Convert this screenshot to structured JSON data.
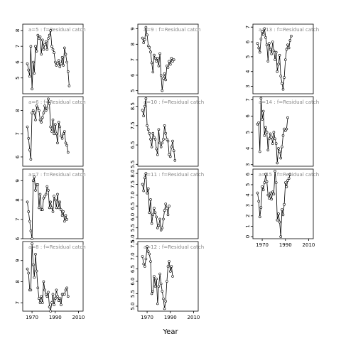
{
  "chart_data": {
    "type": "line",
    "xlabel": "Year",
    "grid": false,
    "panels": [
      {
        "label": "a=5 : f=Residual catch",
        "col": 0,
        "row": 0,
        "ylim": [
          4.0,
          8.4
        ],
        "yticks": [
          5,
          6,
          7,
          8
        ],
        "xticks": [],
        "x": [
          1966,
          1967,
          1968,
          1969,
          1970,
          1971,
          1972,
          1973,
          1974,
          1975,
          1976,
          1977,
          1978,
          1979,
          1980,
          1981,
          1982,
          1983,
          1984,
          1985,
          1986,
          1987,
          1988,
          1989,
          1990,
          1991,
          1992,
          1993,
          1994,
          1995,
          1996,
          1997,
          1998,
          1999,
          2000,
          2001,
          2002,
          2003,
          2004,
          2005,
          2006,
          2007,
          2008,
          2009,
          2010
        ],
        "y": [
          5.9,
          5.5,
          5.1,
          7.0,
          4.3,
          6.0,
          5.3,
          7.0,
          6.7,
          7.7,
          7.5,
          7.6,
          6.5,
          7.4,
          6.8,
          7.1,
          7.3,
          6.8,
          7.5,
          7.7,
          8.0,
          7.0,
          6.8,
          6.6,
          6.0,
          5.8,
          5.9,
          6.1,
          5.7,
          5.9,
          6.3,
          5.8,
          6.9,
          6.5,
          6.0,
          5.4,
          4.5,
          null,
          null,
          null,
          null,
          null,
          null,
          null,
          null
        ]
      },
      {
        "label": "a=6 : f=Residual catch",
        "col": 0,
        "row": 1,
        "ylim": [
          5.6,
          8.6
        ],
        "yticks": [
          6.0,
          7.0,
          8.0
        ],
        "xticks": [],
        "x": [
          1966,
          1967,
          1968,
          1969,
          1970,
          1971,
          1972,
          1973,
          1974,
          1975,
          1976,
          1977,
          1978,
          1979,
          1980,
          1981,
          1982,
          1983,
          1984,
          1985,
          1986,
          1987,
          1988,
          1989,
          1990,
          1991,
          1992,
          1993,
          1994,
          1995,
          1996,
          1997,
          1998,
          1999,
          2000,
          2001,
          2002,
          2003,
          2004,
          2005,
          2006,
          2007,
          2008,
          2009,
          2010
        ],
        "y": [
          7.3,
          6.8,
          6.3,
          5.9,
          7.9,
          8.0,
          7.9,
          7.6,
          8.2,
          8.1,
          8.0,
          7.6,
          7.5,
          7.7,
          7.9,
          8.2,
          8.0,
          8.1,
          8.5,
          8.3,
          7.3,
          7.1,
          7.6,
          7.0,
          7.4,
          7.0,
          6.6,
          7.5,
          7.3,
          6.9,
          6.8,
          7.0,
          7.1,
          6.6,
          6.5,
          6.2,
          null,
          null,
          null,
          null,
          null,
          null,
          null,
          null,
          null
        ]
      },
      {
        "label": "a=7 : f=Residual catch",
        "col": 0,
        "row": 2,
        "ylim": [
          6.0,
          9.6
        ],
        "yticks": [
          6.0,
          7.0,
          8.0,
          9.0
        ],
        "xticks": [],
        "x": [
          1966,
          1967,
          1968,
          1969,
          1970,
          1971,
          1972,
          1973,
          1974,
          1975,
          1976,
          1977,
          1978,
          1979,
          1980,
          1981,
          1982,
          1983,
          1984,
          1985,
          1986,
          1987,
          1988,
          1989,
          1990,
          1991,
          1992,
          1993,
          1994,
          1995,
          1996,
          1997,
          1998,
          1999,
          2000,
          2001,
          2002,
          2003,
          2004,
          2005,
          2006,
          2007,
          2008,
          2009,
          2010
        ],
        "y": [
          7.9,
          7.4,
          6.9,
          6.4,
          6.0,
          9.0,
          9.2,
          8.5,
          8.8,
          8.8,
          7.6,
          8.3,
          7.5,
          7.5,
          8.1,
          8.2,
          8.3,
          8.7,
          8.5,
          7.6,
          7.9,
          7.6,
          7.4,
          8.2,
          8.0,
          7.6,
          8.3,
          7.6,
          7.9,
          7.5,
          7.2,
          7.4,
          6.9,
          7.2,
          7.0,
          null,
          null,
          null,
          null,
          null,
          null,
          null,
          null,
          null,
          null
        ]
      },
      {
        "label": "a=8 : f=Residual catch",
        "col": 0,
        "row": 3,
        "ylim": [
          6.6,
          9.9
        ],
        "yticks": [
          7.0,
          8.0,
          9.0
        ],
        "xticks": [
          1970,
          1990,
          2010
        ],
        "x": [
          1966,
          1967,
          1968,
          1969,
          1970,
          1971,
          1972,
          1973,
          1974,
          1975,
          1976,
          1977,
          1978,
          1979,
          1980,
          1981,
          1982,
          1983,
          1984,
          1985,
          1986,
          1987,
          1988,
          1989,
          1990,
          1991,
          1992,
          1993,
          1994,
          1995,
          1996,
          1997,
          1998,
          1999,
          2000,
          2001,
          2002,
          2003,
          2004,
          2005,
          2006,
          2007,
          2008,
          2009,
          2010
        ],
        "y": [
          8.6,
          8.4,
          7.6,
          7.6,
          9.8,
          8.8,
          8.2,
          9.3,
          8.5,
          7.7,
          7.2,
          7.0,
          7.3,
          7.0,
          8.0,
          7.6,
          7.4,
          7.3,
          7.5,
          6.8,
          6.6,
          7.0,
          7.4,
          6.9,
          7.2,
          7.6,
          7.3,
          7.1,
          7.2,
          6.9,
          7.4,
          7.4,
          7.4,
          7.6,
          7.7,
          7.3,
          null,
          null,
          null,
          null,
          null,
          null,
          null,
          null,
          null
        ]
      },
      {
        "label": "a=9 : f=Residual catch",
        "col": 1,
        "row": 0,
        "ylim": [
          4.8,
          9.3
        ],
        "yticks": [
          5,
          6,
          7,
          8,
          9
        ],
        "xticks": [],
        "x": [
          1966,
          1967,
          1968,
          1969,
          1970,
          1971,
          1972,
          1973,
          1974,
          1975,
          1976,
          1977,
          1978,
          1979,
          1980,
          1981,
          1982,
          1983,
          1984,
          1985,
          1986,
          1987,
          1988,
          1989,
          1990,
          1991,
          1992,
          1993,
          1994,
          1995,
          1996,
          1997,
          1998,
          1999,
          2000,
          2001,
          2002,
          2003,
          2004,
          2005,
          2006,
          2007,
          2008,
          2009,
          2010
        ],
        "y": [
          8.4,
          8.1,
          8.3,
          9.1,
          8.6,
          7.9,
          7.8,
          7.5,
          6.8,
          6.2,
          7.3,
          7.1,
          6.9,
          7.1,
          6.6,
          7.4,
          6.0,
          5.0,
          5.8,
          6.1,
          5.7,
          6.6,
          6.5,
          6.9,
          6.7,
          7.1,
          6.9,
          7.0,
          null,
          null,
          null,
          null,
          null,
          null,
          null,
          null,
          null,
          null,
          null,
          null,
          null,
          null,
          null,
          null,
          null
        ]
      },
      {
        "label": "a=10 : f=Residual catch",
        "col": 1,
        "row": 1,
        "ylim": [
          5.4,
          9.0
        ],
        "yticks": [
          5.5,
          6.5,
          7.5,
          8.5
        ],
        "xticks": [],
        "x": [
          1966,
          1967,
          1968,
          1969,
          1970,
          1971,
          1972,
          1973,
          1974,
          1975,
          1976,
          1977,
          1978,
          1979,
          1980,
          1981,
          1982,
          1983,
          1984,
          1985,
          1986,
          1987,
          1988,
          1989,
          1990,
          1991,
          1992,
          1993,
          1994,
          1995,
          1996,
          1997,
          1998,
          1999,
          2000,
          2001,
          2002,
          2003,
          2004,
          2005,
          2006,
          2007,
          2008,
          2009,
          2010
        ],
        "y": [
          8.3,
          8.0,
          8.5,
          8.9,
          7.5,
          7.3,
          7.1,
          6.8,
          6.4,
          7.1,
          6.9,
          6.8,
          6.3,
          6.0,
          7.3,
          6.6,
          6.4,
          6.6,
          6.8,
          7.5,
          7.1,
          6.8,
          6.7,
          6.0,
          5.9,
          6.4,
          6.7,
          6.2,
          5.7,
          null,
          null,
          null,
          null,
          null,
          null,
          null,
          null,
          null,
          null,
          null,
          null,
          null,
          null,
          null,
          null
        ]
      },
      {
        "label": "a=11 : f=Residual catch",
        "col": 1,
        "row": 2,
        "ylim": [
          5.0,
          8.2
        ],
        "yticks": [
          5.0,
          5.5,
          6.0,
          6.5,
          7.0,
          7.5,
          8.0
        ],
        "xticks": [],
        "x": [
          1966,
          1967,
          1968,
          1969,
          1970,
          1971,
          1972,
          1973,
          1974,
          1975,
          1976,
          1977,
          1978,
          1979,
          1980,
          1981,
          1982,
          1983,
          1984,
          1985,
          1986,
          1987,
          1988,
          1989,
          1990,
          1991,
          1992,
          1993,
          1994,
          1995,
          1996,
          1997,
          1998,
          1999,
          2000,
          2001,
          2002,
          2003,
          2004,
          2005,
          2006,
          2007,
          2008,
          2009,
          2010
        ],
        "y": [
          7.5,
          7.2,
          7.8,
          8.0,
          7.1,
          7.3,
          6.2,
          6.8,
          5.7,
          6.1,
          6.4,
          6.2,
          6.0,
          5.5,
          5.6,
          5.9,
          5.4,
          5.5,
          5.9,
          6.3,
          6.6,
          6.4,
          6.1,
          6.5,
          null,
          null,
          null,
          null,
          null,
          null,
          null,
          null,
          null,
          null,
          null,
          null,
          null,
          null,
          null,
          null,
          null,
          null,
          null,
          null,
          null
        ]
      },
      {
        "label": "a=12 : f=Residual catch",
        "col": 1,
        "row": 3,
        "ylim": [
          4.8,
          7.6
        ],
        "yticks": [
          5.0,
          5.5,
          6.0,
          6.5,
          7.0,
          7.5
        ],
        "xticks": [
          1970,
          1990,
          2010
        ],
        "x": [
          1966,
          1967,
          1968,
          1969,
          1970,
          1971,
          1972,
          1973,
          1974,
          1975,
          1976,
          1977,
          1978,
          1979,
          1980,
          1981,
          1982,
          1983,
          1984,
          1985,
          1986,
          1987,
          1988,
          1989,
          1990,
          1991,
          1992,
          1993,
          1994,
          1995,
          1996,
          1997,
          1998,
          1999,
          2000,
          2001,
          2002,
          2003,
          2004,
          2005,
          2006,
          2007,
          2008,
          2009,
          2010
        ],
        "y": [
          7.0,
          6.7,
          6.6,
          6.9,
          7.4,
          7.2,
          7.1,
          6.8,
          5.5,
          5.6,
          6.2,
          5.8,
          6.1,
          5.1,
          5.8,
          6.3,
          5.9,
          5.6,
          5.3,
          4.9,
          5.2,
          6.0,
          6.6,
          6.8,
          6.4,
          6.6,
          6.2,
          null,
          null,
          null,
          null,
          null,
          null,
          null,
          null,
          null,
          null,
          null,
          null,
          null,
          null,
          null,
          null,
          null,
          null
        ]
      },
      {
        "label": "a=13 : f=Residual catch",
        "col": 2,
        "row": 0,
        "ylim": [
          2.5,
          7.2
        ],
        "yticks": [
          3,
          4,
          5,
          6,
          7
        ],
        "xticks": [],
        "x": [
          1966,
          1967,
          1968,
          1969,
          1970,
          1971,
          1972,
          1973,
          1974,
          1975,
          1976,
          1977,
          1978,
          1979,
          1980,
          1981,
          1982,
          1983,
          1984,
          1985,
          1986,
          1987,
          1988,
          1989,
          1990,
          1991,
          1992,
          1993,
          1994,
          1995,
          1996,
          1997,
          1998,
          1999,
          2000,
          2001,
          2002,
          2003,
          2004,
          2005,
          2006,
          2007,
          2008,
          2009,
          2010
        ],
        "y": [
          5.9,
          5.6,
          5.3,
          6.2,
          6.7,
          6.5,
          6.9,
          6.3,
          5.8,
          4.7,
          5.9,
          5.5,
          5.2,
          6.0,
          5.4,
          4.8,
          5.3,
          4.0,
          4.5,
          5.1,
          3.7,
          3.2,
          2.8,
          3.6,
          4.8,
          5.5,
          5.8,
          5.6,
          6.1,
          6.4,
          null,
          null,
          null,
          null,
          null,
          null,
          null,
          null,
          null,
          null,
          null,
          null,
          null,
          null,
          null
        ]
      },
      {
        "label": "a=14 : f=Residual catch",
        "col": 2,
        "row": 1,
        "ylim": [
          2.9,
          7.2
        ],
        "yticks": [
          3,
          4,
          5,
          6,
          7
        ],
        "xticks": [],
        "x": [
          1966,
          1967,
          1968,
          1969,
          1970,
          1971,
          1972,
          1973,
          1974,
          1975,
          1976,
          1977,
          1978,
          1979,
          1980,
          1981,
          1982,
          1983,
          1984,
          1985,
          1986,
          1987,
          1988,
          1989,
          1990,
          1991,
          1992,
          1993,
          1994,
          1995,
          1996,
          1997,
          1998,
          1999,
          2000,
          2001,
          2002,
          2003,
          2004,
          2005,
          2006,
          2007,
          2008,
          2009,
          2010
        ],
        "y": [
          5.5,
          5.6,
          3.8,
          7.1,
          5.8,
          6.3,
          4.8,
          5.3,
          5.0,
          3.9,
          4.6,
          4.9,
          4.7,
          4.3,
          5.0,
          4.6,
          4.3,
          3.1,
          4.0,
          3.8,
          3.4,
          4.1,
          4.8,
          5.2,
          5.1,
          5.2,
          5.9,
          null,
          null,
          null,
          null,
          null,
          null,
          null,
          null,
          null,
          null,
          null,
          null,
          null,
          null,
          null,
          null,
          null,
          null
        ]
      },
      {
        "label": "a=15 : f=Residual catch",
        "col": 2,
        "row": 2,
        "ylim": [
          -0.2,
          6.5
        ],
        "yticks": [
          0,
          1,
          2,
          3,
          4,
          5,
          6
        ],
        "xticks": [
          1970,
          1990,
          2010
        ],
        "x": [
          1966,
          1967,
          1968,
          1969,
          1970,
          1971,
          1972,
          1973,
          1974,
          1975,
          1976,
          1977,
          1978,
          1979,
          1980,
          1981,
          1982,
          1983,
          1984,
          1985,
          1986,
          1987,
          1988,
          1989,
          1990,
          1991,
          1992,
          1993,
          1994,
          1995,
          1996,
          1997,
          1998,
          1999,
          2000,
          2001,
          2002,
          2003,
          2004,
          2005,
          2006,
          2007,
          2008,
          2009,
          2010
        ],
        "y": [
          4.2,
          3.4,
          1.9,
          2.8,
          4.8,
          4.5,
          5.2,
          6.0,
          5.3,
          4.0,
          3.7,
          4.2,
          3.6,
          4.3,
          4.1,
          6.3,
          5.2,
          1.6,
          2.2,
          1.4,
          0.0,
          2.6,
          2.1,
          3.1,
          5.2,
          4.8,
          5.4,
          5.6,
          6.0,
          null,
          null,
          null,
          null,
          null,
          null,
          null,
          null,
          null,
          null,
          null,
          null,
          null,
          null,
          null,
          null
        ]
      }
    ]
  }
}
